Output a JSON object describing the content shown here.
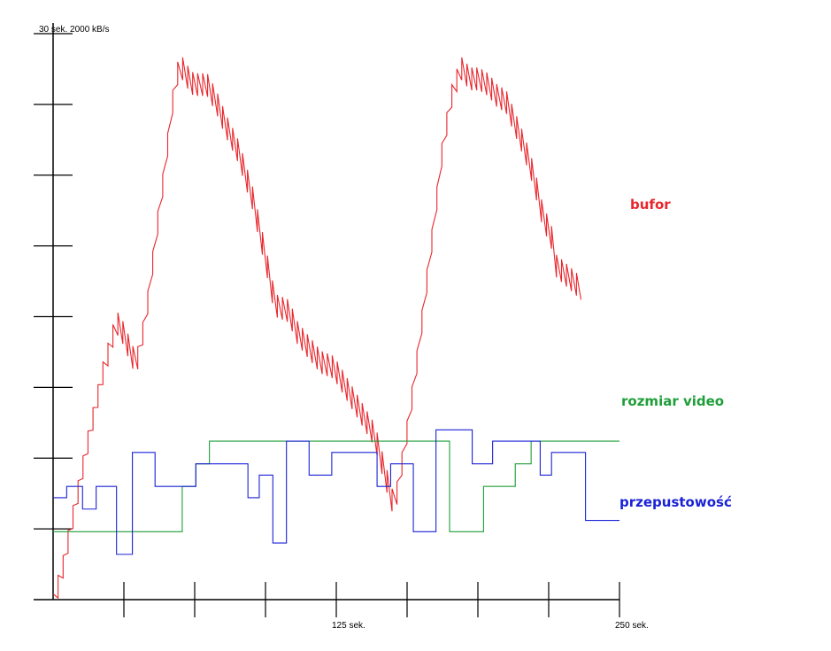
{
  "chart_data": {
    "type": "line",
    "title": "",
    "y_corner_label": "30 sek. 2000 kB/s",
    "x_tick_labels": [
      {
        "x": 125,
        "label": "125 sek."
      },
      {
        "x": 250,
        "label": "250 sek."
      }
    ],
    "xlim": [
      0,
      250
    ],
    "x_minor_ticks": [
      31.25,
      62.5,
      93.75,
      125,
      156.25,
      187.5,
      218.75,
      250
    ],
    "y_minor_ticks": [
      0.125,
      0.25,
      0.375,
      0.5,
      0.625,
      0.75,
      0.875,
      1
    ],
    "ylim": [
      0,
      1
    ],
    "grid": false,
    "series": [
      {
        "name": "bufor",
        "color": "#e8262c",
        "sawtooth_amplitude": 0.04,
        "sawtooth_period": 2.2,
        "envelope": [
          [
            0,
            0.01
          ],
          [
            4,
            0.07
          ],
          [
            10,
            0.19
          ],
          [
            16,
            0.31
          ],
          [
            22,
            0.42
          ],
          [
            28,
            0.51
          ],
          [
            30,
            0.5
          ],
          [
            36,
            0.44
          ],
          [
            38,
            0.45
          ],
          [
            42,
            0.55
          ],
          [
            46,
            0.68
          ],
          [
            50,
            0.8
          ],
          [
            52,
            0.88
          ],
          [
            54,
            0.93
          ],
          [
            56,
            0.97
          ],
          [
            58,
            0.95
          ],
          [
            62,
            0.93
          ],
          [
            68,
            0.93
          ],
          [
            72,
            0.9
          ],
          [
            76,
            0.86
          ],
          [
            82,
            0.81
          ],
          [
            88,
            0.73
          ],
          [
            94,
            0.62
          ],
          [
            98,
            0.54
          ],
          [
            104,
            0.53
          ],
          [
            108,
            0.49
          ],
          [
            114,
            0.46
          ],
          [
            118,
            0.44
          ],
          [
            124,
            0.43
          ],
          [
            130,
            0.39
          ],
          [
            136,
            0.35
          ],
          [
            142,
            0.31
          ],
          [
            146,
            0.25
          ],
          [
            150,
            0.19
          ],
          [
            152,
            0.21
          ],
          [
            156,
            0.31
          ],
          [
            160,
            0.42
          ],
          [
            164,
            0.55
          ],
          [
            168,
            0.68
          ],
          [
            172,
            0.82
          ],
          [
            176,
            0.91
          ],
          [
            180,
            0.96
          ],
          [
            184,
            0.94
          ],
          [
            188,
            0.94
          ],
          [
            192,
            0.93
          ],
          [
            196,
            0.91
          ],
          [
            200,
            0.9
          ],
          [
            204,
            0.86
          ],
          [
            208,
            0.82
          ],
          [
            212,
            0.77
          ],
          [
            216,
            0.7
          ],
          [
            220,
            0.66
          ],
          [
            222,
            0.61
          ],
          [
            233,
            0.57
          ]
        ],
        "label": "bufor"
      },
      {
        "name": "rozmiar video",
        "color": "#1e9e38",
        "steps": [
          [
            0,
            0.12
          ],
          [
            57,
            0.2
          ],
          [
            63,
            0.24
          ],
          [
            69,
            0.28
          ],
          [
            175,
            0.12
          ],
          [
            190,
            0.2
          ],
          [
            204,
            0.24
          ],
          [
            211,
            0.28
          ],
          [
            250,
            0.28
          ]
        ],
        "label": "rozmiar video"
      },
      {
        "name": "przepustowość",
        "color": "#1a22d6",
        "steps": [
          [
            0,
            0.18
          ],
          [
            6,
            0.2
          ],
          [
            13,
            0.16
          ],
          [
            19,
            0.2
          ],
          [
            28,
            0.08
          ],
          [
            35,
            0.26
          ],
          [
            45,
            0.2
          ],
          [
            63,
            0.24
          ],
          [
            86,
            0.18
          ],
          [
            91,
            0.22
          ],
          [
            97,
            0.1
          ],
          [
            103,
            0.28
          ],
          [
            113,
            0.22
          ],
          [
            123,
            0.26
          ],
          [
            143,
            0.2
          ],
          [
            149,
            0.24
          ],
          [
            159,
            0.12
          ],
          [
            169,
            0.3
          ],
          [
            185,
            0.24
          ],
          [
            194,
            0.28
          ],
          [
            215,
            0.22
          ],
          [
            220,
            0.26
          ],
          [
            235,
            0.14
          ],
          [
            250,
            0.14
          ]
        ],
        "label": "przepustowość"
      }
    ]
  }
}
